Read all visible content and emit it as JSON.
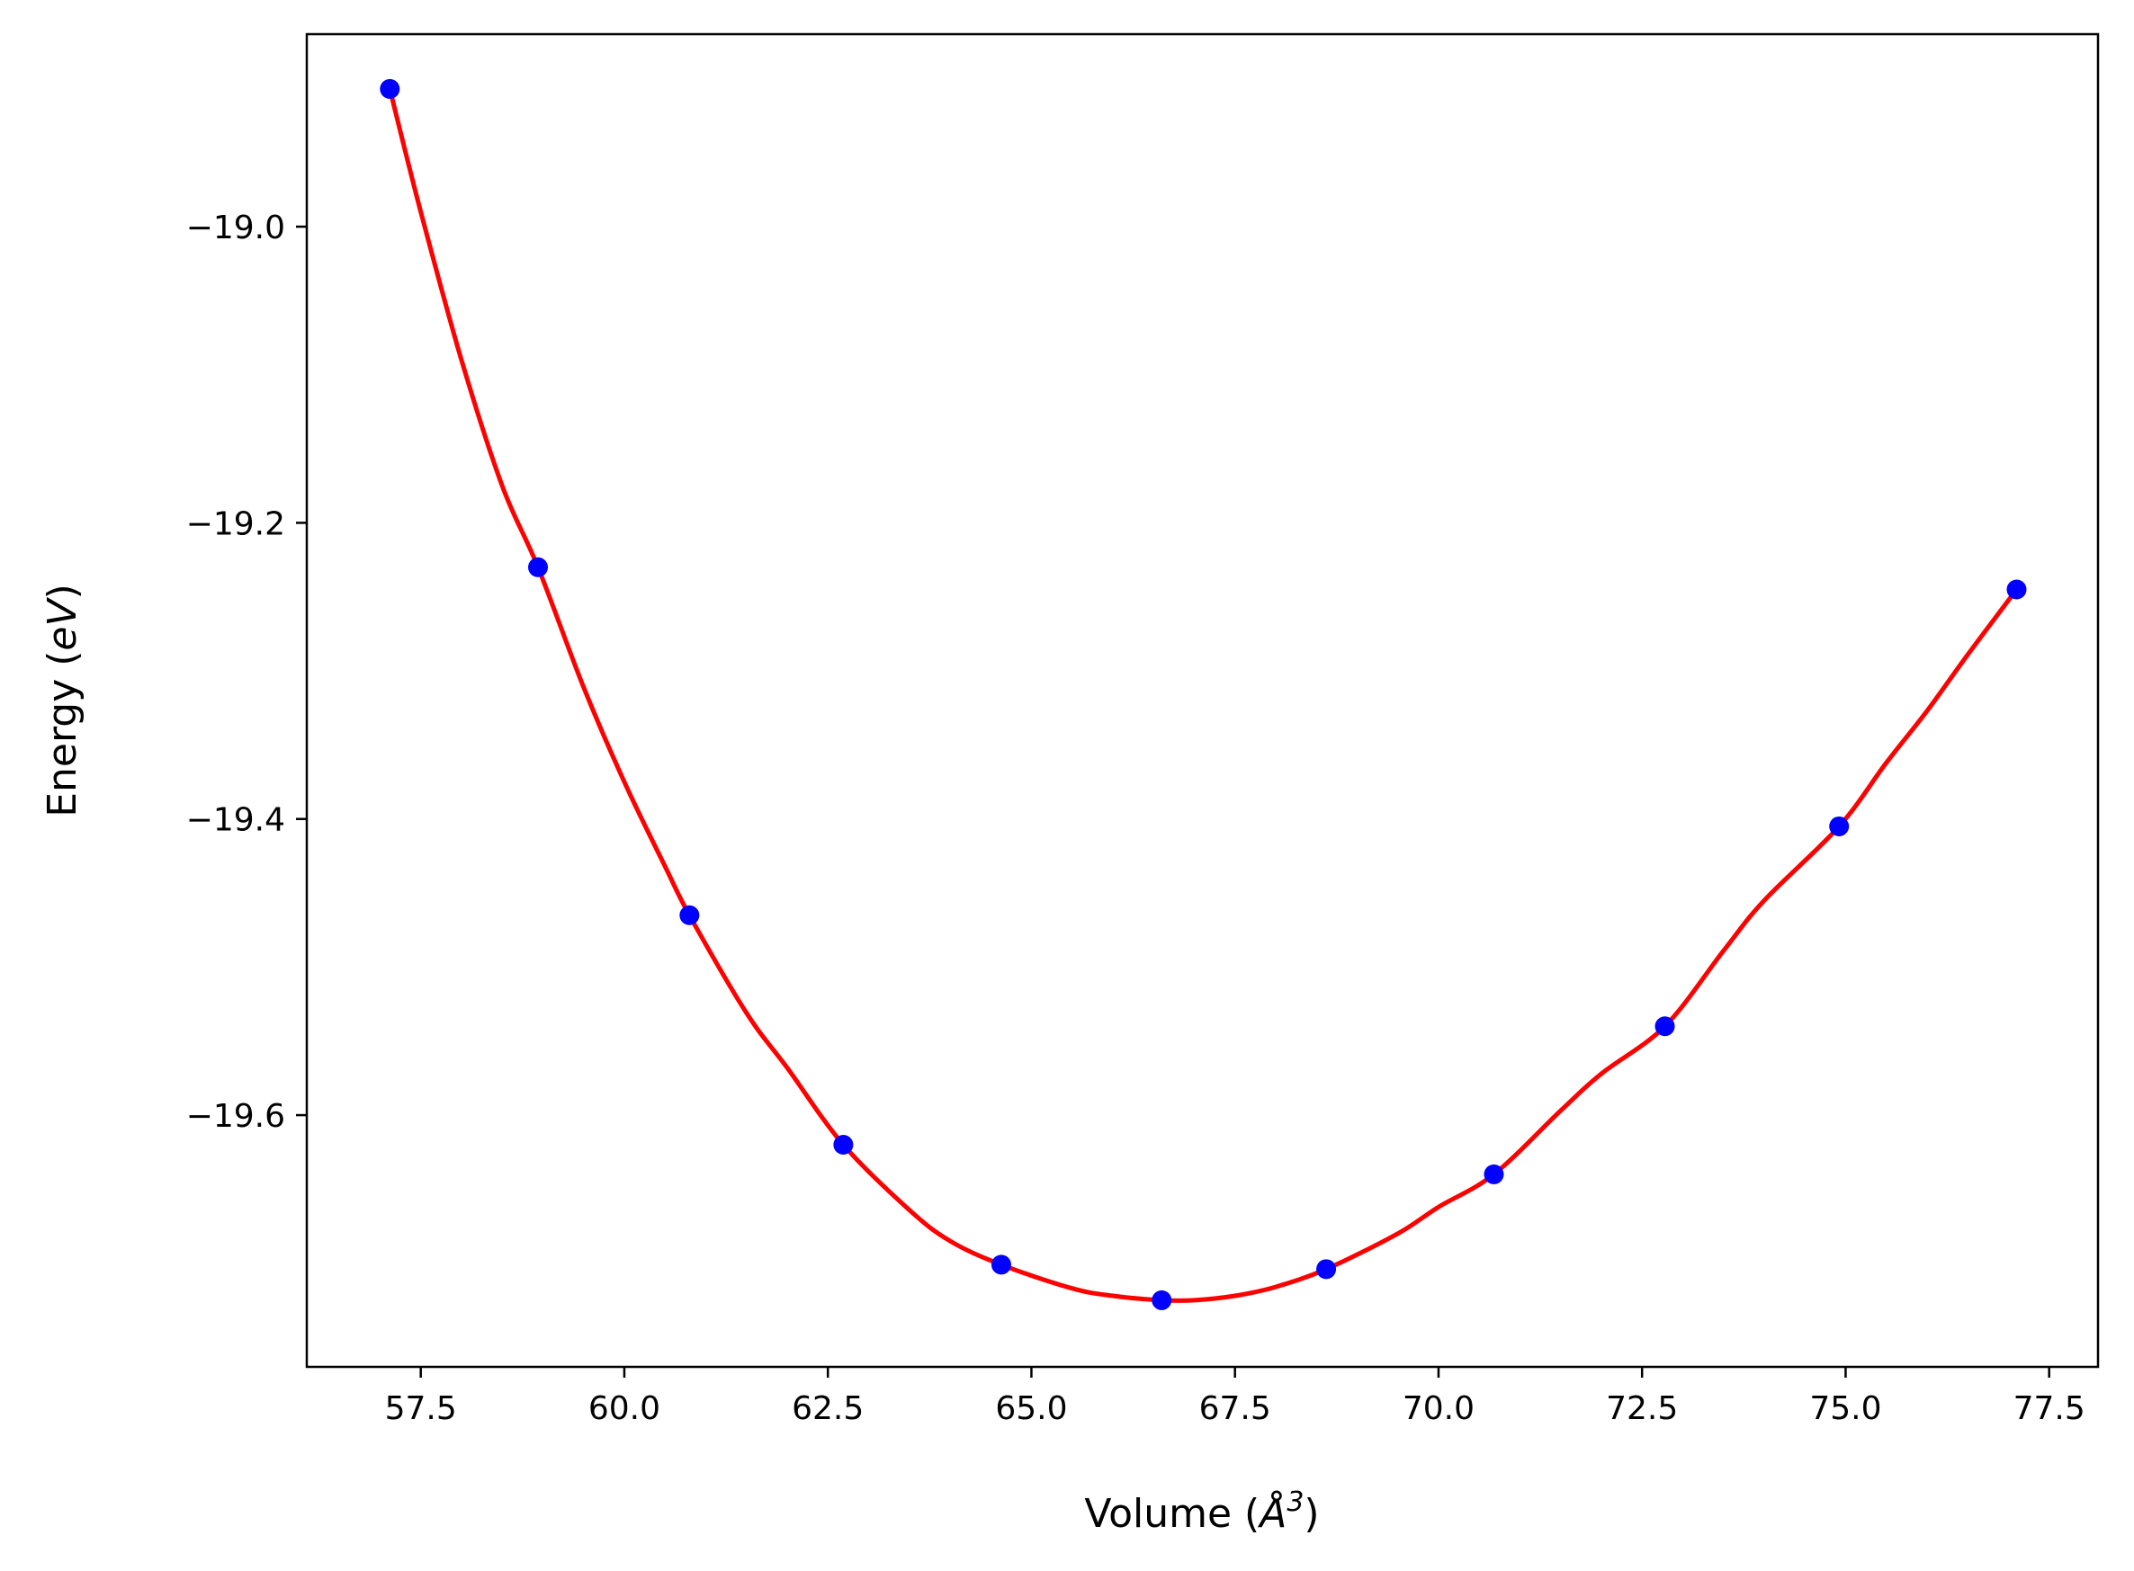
{
  "chart_data": {
    "type": "scatter",
    "xlabel": "Volume (Å³)",
    "xlabel_parts": {
      "base": "Volume (",
      "symbol": "Å",
      "sup": "3",
      "close": ")"
    },
    "ylabel": "Energy (eV)",
    "ylabel_parts": {
      "base": "Energy (",
      "unit": "eV",
      "close": ")"
    },
    "xlim": [
      56.1,
      78.1
    ],
    "ylim": [
      -19.77,
      -18.87
    ],
    "xticks": [
      57.5,
      60.0,
      62.5,
      65.0,
      67.5,
      70.0,
      72.5,
      75.0,
      77.5
    ],
    "xtick_labels": [
      "57.5",
      "60.0",
      "62.5",
      "65.0",
      "67.5",
      "70.0",
      "72.5",
      "75.0",
      "77.5"
    ],
    "yticks": [
      -19.0,
      -19.2,
      -19.4,
      -19.6
    ],
    "ytick_labels": [
      "−19.0",
      "−19.2",
      "−19.4",
      "−19.6"
    ],
    "grid": false,
    "series": [
      {
        "kind": "points",
        "color": "#0000ff",
        "x": [
          57.12,
          58.94,
          60.8,
          62.69,
          64.63,
          66.6,
          68.62,
          70.68,
          72.78,
          74.92,
          77.1
        ],
        "y": [
          -18.907,
          -19.23,
          -19.465,
          -19.62,
          -19.701,
          -19.725,
          -19.704,
          -19.64,
          -19.54,
          -19.405,
          -19.245
        ]
      },
      {
        "kind": "fit-curve",
        "color": "#ff0000",
        "x": [
          57.12,
          57.5,
          58.0,
          58.5,
          58.94,
          59.5,
          60.0,
          60.5,
          60.8,
          61.5,
          62.0,
          62.69,
          63.5,
          64.0,
          64.63,
          65.5,
          66.0,
          66.6,
          67.0,
          67.5,
          68.0,
          68.62,
          69.5,
          70.0,
          70.68,
          71.5,
          72.0,
          72.78,
          73.5,
          74.0,
          74.92,
          75.5,
          76.0,
          76.5,
          77.1
        ],
        "y": [
          -18.907,
          -18.99,
          -19.09,
          -19.175,
          -19.23,
          -19.311,
          -19.375,
          -19.432,
          -19.465,
          -19.531,
          -19.568,
          -19.62,
          -19.664,
          -19.685,
          -19.701,
          -19.717,
          -19.722,
          -19.725,
          -19.725,
          -19.722,
          -19.716,
          -19.704,
          -19.68,
          -19.662,
          -19.64,
          -19.597,
          -19.572,
          -19.54,
          -19.489,
          -19.455,
          -19.405,
          -19.362,
          -19.327,
          -19.289,
          -19.245
        ]
      }
    ]
  }
}
